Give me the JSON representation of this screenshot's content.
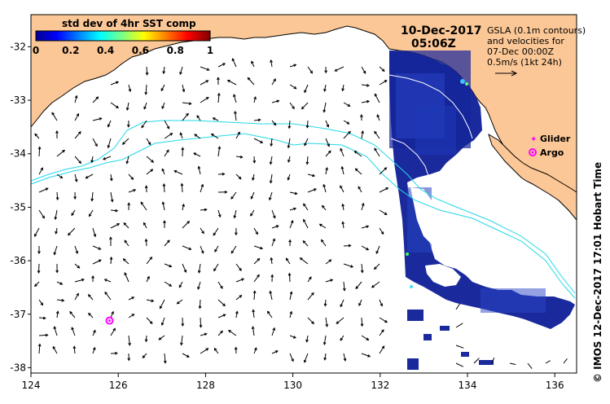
{
  "colorbar": {
    "title": "std dev of 4hr SST comp",
    "tick_labels": [
      "0",
      "0.2",
      "0.4",
      "0.6",
      "0.8",
      "1"
    ],
    "range": [
      0,
      1
    ]
  },
  "timestamp": {
    "date": "10-Dec-2017",
    "time": "05:06Z"
  },
  "gsla_note": {
    "line1": "GSLA (0.1m contours)",
    "line2": "and velocities for",
    "line3": "07-Dec 00:00Z",
    "line4": "0.5m/s (1kt 24h)"
  },
  "legend": {
    "glider_label": "Glider",
    "argo_label": "Argo"
  },
  "credit": "© IMOS 12-Dec-2017 17:01 Hobart Time",
  "axes": {
    "lon_range": [
      124,
      136.5
    ],
    "lat_range": [
      -38.1,
      -31.4
    ],
    "lon_ticks": [
      "124",
      "126",
      "128",
      "130",
      "132",
      "134",
      "136"
    ],
    "lat_ticks": [
      "-32",
      "-33",
      "-34",
      "-35",
      "-36",
      "-37",
      "-38"
    ]
  },
  "argo_float": {
    "lon": 125.8,
    "lat": -37.12
  },
  "colors": {
    "land": "#fcc796",
    "sea": "#ffffff",
    "contour": "#22d8e6",
    "marker": "#ff00ff",
    "sst_dark": "#10208a",
    "sst_mid": "#2040c0"
  }
}
